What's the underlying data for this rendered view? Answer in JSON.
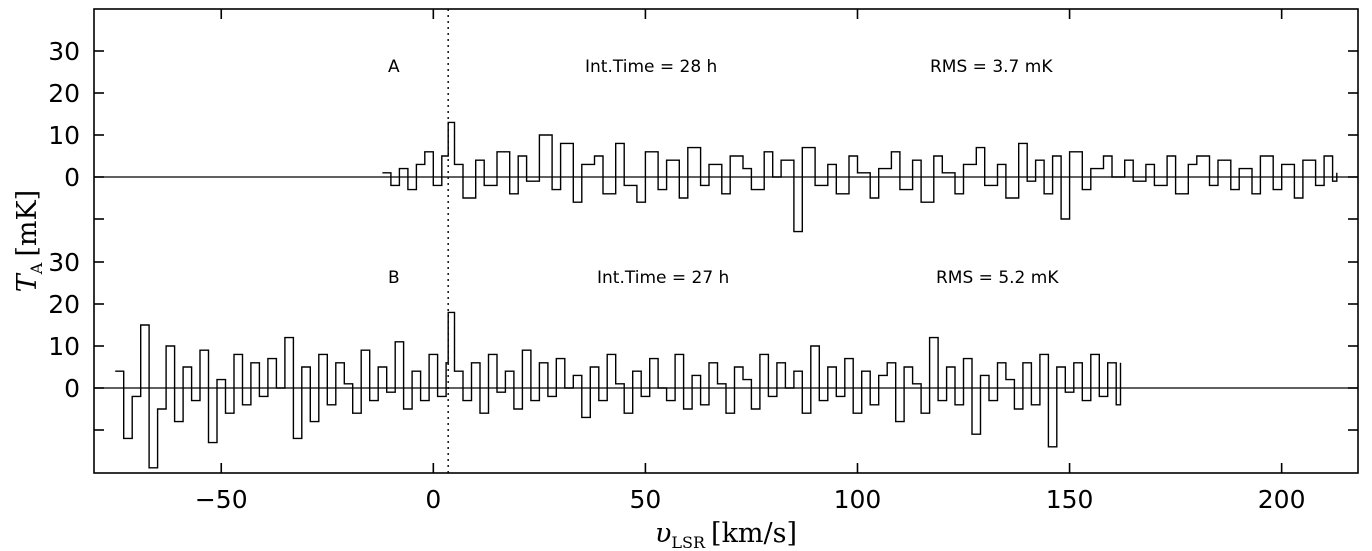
{
  "chart_data": {
    "type": "line",
    "line_shape": "step",
    "title": "",
    "xlabel": "υLSR [km/s]",
    "xlabel_parts": {
      "symbol": "υ",
      "sub": "LSR",
      "unit": "[km/s]"
    },
    "ylabel": "TA [mK]",
    "ylabel_parts": {
      "symbol": "T",
      "sub": "A",
      "unit": "[mK]"
    },
    "xlim": [
      -80,
      218
    ],
    "x_ticks": [
      -50,
      0,
      50,
      100,
      150,
      200
    ],
    "x_tick_labels": [
      "−50",
      "0",
      "50",
      "100",
      "150",
      "200"
    ],
    "reference_velocity": 3.5,
    "grid": false,
    "panels": [
      {
        "id": "A",
        "label": "A",
        "int_time_text": "Int.Time = 28 h",
        "rms_text": "RMS = 3.7 mK",
        "ylim": [
          -20,
          40
        ],
        "y_ticks": [
          -10,
          0,
          10,
          20,
          30
        ],
        "y_tick_labels": [
          "",
          "0",
          "10",
          "20",
          "30"
        ],
        "series": {
          "x": [
            -12,
            -10,
            -8,
            -6,
            -4,
            -2,
            0,
            2,
            3.5,
            5,
            7,
            10,
            12,
            15,
            18,
            20,
            22,
            25,
            28,
            30,
            33,
            35,
            38,
            40,
            43,
            45,
            48,
            50,
            53,
            55,
            58,
            60,
            63,
            65,
            68,
            70,
            73,
            75,
            78,
            80,
            82,
            85,
            87,
            90,
            93,
            95,
            98,
            100,
            103,
            105,
            108,
            110,
            113,
            115,
            118,
            120,
            123,
            125,
            128,
            130,
            133,
            135,
            138,
            140,
            142,
            144,
            146,
            148,
            150,
            153,
            155,
            158,
            160,
            163,
            165,
            168,
            170,
            173,
            175,
            178,
            180,
            183,
            185,
            188,
            190,
            193,
            195,
            198,
            200,
            203,
            205,
            208,
            210,
            212,
            213
          ],
          "values": [
            1,
            -2,
            2,
            -3,
            3,
            6,
            -2,
            5,
            13,
            3,
            -5,
            4,
            -2,
            6,
            -4,
            5,
            -1,
            10,
            -3,
            8,
            -6,
            3,
            5,
            -4,
            8,
            -2,
            -6,
            6,
            -3,
            4,
            -5,
            7,
            -2,
            3,
            -4,
            5,
            2,
            -3,
            6,
            0,
            4,
            -13,
            7,
            -2,
            3,
            -4,
            5,
            1,
            -5,
            2,
            6,
            -3,
            4,
            -6,
            5,
            1,
            -4,
            3,
            7,
            -2,
            3,
            -5,
            8,
            -1,
            4,
            -4,
            5,
            -10,
            6,
            -3,
            2,
            5,
            0,
            4,
            -1,
            3,
            -2,
            5,
            -4,
            3,
            5,
            -2,
            4,
            -3,
            2,
            -4,
            5,
            -3,
            3,
            -5,
            4,
            -2,
            5,
            -1,
            1
          ]
        }
      },
      {
        "id": "B",
        "label": "B",
        "int_time_text": "Int.Time = 27 h",
        "rms_text": "RMS = 5.2 mK",
        "ylim": [
          -20,
          40
        ],
        "y_ticks": [
          -10,
          0,
          10,
          20,
          30
        ],
        "y_tick_labels": [
          "",
          "0",
          "10",
          "20",
          "30"
        ],
        "series": {
          "x": [
            -75,
            -73,
            -71,
            -69,
            -67,
            -65,
            -63,
            -61,
            -59,
            -57,
            -55,
            -53,
            -51,
            -49,
            -47,
            -45,
            -43,
            -41,
            -39,
            -37,
            -35,
            -33,
            -31,
            -29,
            -27,
            -25,
            -23,
            -21,
            -19,
            -17,
            -15,
            -13,
            -11,
            -9,
            -7,
            -5,
            -3,
            -1,
            1,
            3,
            3.5,
            5,
            7,
            9,
            11,
            13,
            15,
            17,
            19,
            21,
            23,
            25,
            27,
            29,
            31,
            33,
            35,
            37,
            39,
            41,
            43,
            45,
            47,
            49,
            51,
            53,
            55,
            57,
            59,
            61,
            63,
            65,
            67,
            69,
            71,
            73,
            75,
            77,
            79,
            81,
            83,
            85,
            87,
            89,
            91,
            93,
            95,
            97,
            99,
            101,
            103,
            105,
            107,
            109,
            111,
            113,
            115,
            117,
            119,
            121,
            123,
            125,
            127,
            129,
            131,
            133,
            135,
            137,
            139,
            141,
            143,
            145,
            147,
            149,
            151,
            153,
            155,
            157,
            159,
            161,
            162
          ],
          "values": [
            4,
            -12,
            -2,
            15,
            -19,
            -5,
            10,
            -8,
            5,
            -3,
            9,
            -13,
            2,
            -6,
            8,
            -4,
            6,
            -2,
            7,
            0,
            12,
            -12,
            5,
            -8,
            8,
            -4,
            6,
            1,
            -6,
            9,
            -3,
            5,
            -1,
            11,
            -5,
            4,
            -3,
            8,
            -2,
            6,
            18,
            4,
            -3,
            6,
            -6,
            8,
            -1,
            4,
            -5,
            9,
            -3,
            6,
            -2,
            7,
            0,
            3,
            -7,
            5,
            -3,
            8,
            1,
            -6,
            4,
            -2,
            7,
            0,
            -3,
            8,
            -5,
            3,
            -4,
            6,
            1,
            -6,
            5,
            2,
            -5,
            8,
            -2,
            6,
            0,
            4,
            -6,
            10,
            -3,
            5,
            -2,
            7,
            -6,
            4,
            -4,
            3,
            6,
            -8,
            5,
            1,
            -6,
            12,
            -3,
            5,
            -4,
            7,
            -11,
            3,
            -3,
            6,
            2,
            -5,
            6,
            -4,
            8,
            -14,
            5,
            -1,
            6,
            -3,
            8,
            -2,
            6,
            -4,
            6
          ]
        }
      }
    ]
  }
}
